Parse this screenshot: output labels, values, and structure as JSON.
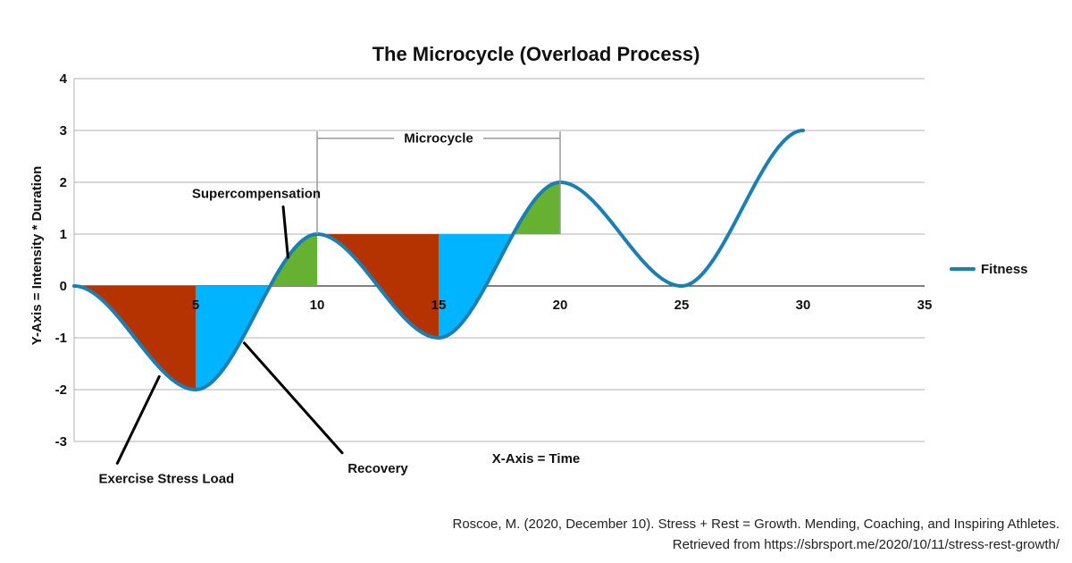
{
  "chart_data": {
    "type": "line",
    "title": "The Microcycle (Overload Process)",
    "xlabel": "X-Axis = Time",
    "ylabel": "Y-Axis = Intensity * Duration",
    "xlim": [
      0,
      35
    ],
    "ylim": [
      -3,
      4
    ],
    "xticks": [
      5,
      10,
      15,
      20,
      25,
      30,
      35
    ],
    "yticks": [
      -3,
      -2,
      -1,
      0,
      1,
      2,
      3,
      4
    ],
    "grid": true,
    "legend_position": "right",
    "series": [
      {
        "name": "Fitness",
        "color": "#1b7fb5",
        "points": [
          [
            0,
            0
          ],
          [
            5,
            -2
          ],
          [
            10,
            1
          ],
          [
            15,
            -1
          ],
          [
            20,
            2
          ],
          [
            25,
            0
          ],
          [
            30,
            3
          ]
        ]
      }
    ],
    "shaded_regions": [
      {
        "x": [
          0,
          5
        ],
        "baseline": 0,
        "color": "#b53300",
        "meaning": "stress"
      },
      {
        "x": [
          5,
          8
        ],
        "baseline": 0,
        "color": "#00b4ff",
        "meaning": "recovery"
      },
      {
        "x": [
          8,
          10
        ],
        "baseline": 0,
        "color": "#66b032",
        "meaning": "supercompensation"
      },
      {
        "x": [
          10,
          15
        ],
        "baseline": 1,
        "color": "#b53300",
        "meaning": "stress"
      },
      {
        "x": [
          15,
          18
        ],
        "baseline": 1,
        "color": "#00b4ff",
        "meaning": "recovery"
      },
      {
        "x": [
          18,
          20
        ],
        "baseline": 1,
        "color": "#66b032",
        "meaning": "supercompensation"
      }
    ],
    "bracket": {
      "label": "Microcycle",
      "x": [
        10,
        20
      ],
      "y": 2.85,
      "drop_to": 1
    },
    "annotations": [
      {
        "label": "Supercompensation",
        "text_at": [
          7.5,
          1.7
        ],
        "points_to": [
          8.8,
          0.55
        ]
      },
      {
        "label": "Exercise Stress Load",
        "text_at": [
          3.8,
          -3.8
        ],
        "points_to": [
          3.5,
          -1.75
        ]
      },
      {
        "label": "Recovery",
        "text_at": [
          12.5,
          -3.6
        ],
        "points_to": [
          7.0,
          -1.1
        ]
      }
    ]
  },
  "citation": {
    "line1": "Roscoe, M. (2020, December 10). Stress + Rest = Growth. Mending, Coaching, and Inspiring Athletes.",
    "line2": "Retrieved from https://sbrsport.me/2020/10/11/stress-rest-growth/"
  }
}
